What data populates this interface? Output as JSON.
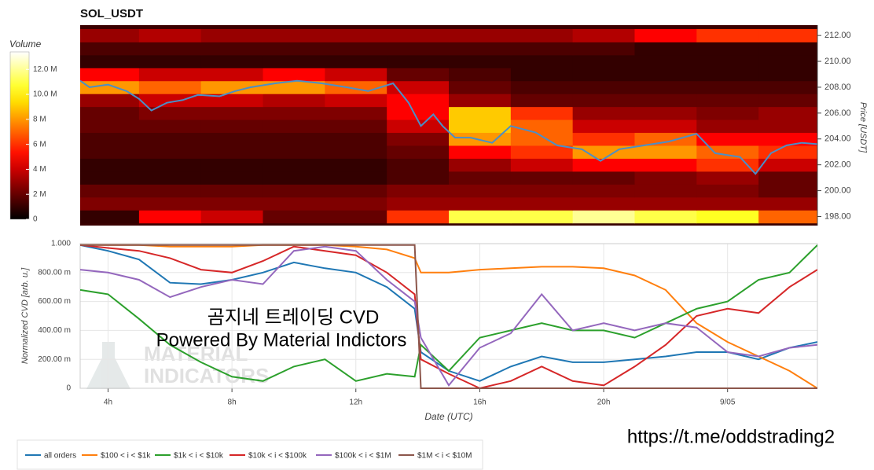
{
  "chart_data": [
    {
      "type": "heatmap",
      "title": "SOL_USDT",
      "x": [
        4,
        6,
        8,
        10,
        12,
        14,
        16,
        18,
        20,
        22,
        24,
        26
      ],
      "y": [
        198,
        199,
        200,
        201,
        202,
        203,
        204,
        205,
        206,
        207,
        208,
        209,
        210,
        211,
        212
      ],
      "z": [
        [
          1000000,
          5000000,
          4000000,
          2000000,
          2000000,
          6000000,
          11000000,
          11000000,
          12000000,
          11000000,
          10500000,
          7000000
        ],
        [
          2500000,
          2500000,
          2500000,
          2500000,
          2500000,
          3000000,
          3000000,
          3000000,
          3000000,
          3000000,
          3000000,
          3000000
        ],
        [
          2000000,
          2000000,
          2000000,
          2000000,
          2000000,
          2500000,
          2500000,
          2500000,
          2500000,
          2500000,
          2500000,
          2000000
        ],
        [
          1000000,
          1000000,
          1000000,
          1000000,
          1000000,
          1500000,
          2000000,
          2000000,
          2000000,
          2500000,
          3000000,
          2000000
        ],
        [
          1000000,
          1000000,
          1000000,
          1000000,
          1000000,
          1500000,
          3000000,
          4000000,
          5000000,
          5000000,
          6000000,
          4000000
        ],
        [
          1500000,
          1500000,
          1500000,
          1500000,
          1500000,
          2000000,
          5000000,
          6000000,
          8000000,
          8000000,
          7000000,
          6000000
        ],
        [
          1500000,
          1500000,
          1500000,
          1500000,
          1500000,
          2500000,
          8000000,
          7000000,
          6000000,
          7000000,
          5000000,
          5000000
        ],
        [
          2000000,
          2000000,
          2000000,
          2000000,
          2000000,
          4000000,
          9000000,
          7000000,
          4000000,
          4000000,
          3000000,
          3000000
        ],
        [
          2000000,
          2500000,
          2500000,
          2500000,
          2500000,
          5000000,
          9000000,
          6000000,
          3000000,
          3000000,
          2500000,
          3000000
        ],
        [
          3000000,
          4000000,
          4000000,
          3500000,
          4000000,
          5000000,
          3000000,
          2000000,
          2000000,
          2000000,
          2000000,
          2000000
        ],
        [
          8000000,
          7000000,
          8000000,
          8000000,
          7000000,
          4000000,
          2000000,
          1500000,
          1500000,
          1500000,
          1500000,
          1500000
        ],
        [
          5000000,
          4000000,
          4000000,
          5000000,
          4000000,
          2000000,
          1500000,
          1000000,
          1000000,
          1000000,
          1000000,
          1000000
        ],
        [
          1000000,
          1000000,
          1000000,
          1000000,
          1000000,
          1000000,
          1000000,
          1000000,
          1000000,
          1000000,
          1000000,
          1000000
        ],
        [
          1500000,
          1500000,
          1500000,
          1500000,
          1500000,
          1500000,
          1500000,
          1500000,
          1500000,
          1000000,
          1000000,
          1000000
        ],
        [
          3000000,
          3500000,
          3000000,
          3000000,
          3000000,
          3000000,
          3000000,
          3000000,
          3500000,
          5000000,
          6000000,
          6000000
        ]
      ],
      "colormap": "hot",
      "colorbar": {
        "label": "Volume",
        "lim": [
          0,
          13400000
        ],
        "ticks": [
          0,
          {
            "value": 2000000,
            "label": "2 M"
          },
          {
            "value": 4000000,
            "label": "4 M"
          },
          {
            "value": 6000000,
            "label": "6 M"
          },
          {
            "value": 8000000,
            "label": "8 M"
          },
          {
            "value": 10000000,
            "label": "10.0 M"
          },
          {
            "value": 12000000,
            "label": "12.0 M"
          }
        ]
      },
      "xlim": [
        3.1,
        26.9
      ],
      "ylim": [
        197.3,
        212.8
      ],
      "yticks": [
        {
          "value": 198,
          "label": "198.00"
        },
        {
          "value": 200,
          "label": "200.00"
        },
        {
          "value": 202,
          "label": "202.00"
        },
        {
          "value": 204,
          "label": "204.00"
        },
        {
          "value": 206,
          "label": "206.00"
        },
        {
          "value": 208,
          "label": "208.00"
        },
        {
          "value": 210,
          "label": "210.00"
        },
        {
          "value": 212,
          "label": "212.00"
        }
      ],
      "ylabel": "Price [USDT]",
      "line": {
        "color": "#4a8fc8",
        "x": [
          3.1,
          3.4,
          4.0,
          4.6,
          5.0,
          5.4,
          5.9,
          6.4,
          6.9,
          7.6,
          8.1,
          8.6,
          9.4,
          10.1,
          10.9,
          11.7,
          12.4,
          13.2,
          13.7,
          14.1,
          14.5,
          14.8,
          15.2,
          15.7,
          16.4,
          17.0,
          17.8,
          18.5,
          19.3,
          19.9,
          20.5,
          21.3,
          22.1,
          23.0,
          23.6,
          24.4,
          24.9,
          25.4,
          25.9,
          26.4,
          26.9
        ],
        "values": [
          208.5,
          208.0,
          208.2,
          207.7,
          207.1,
          206.2,
          206.8,
          207.0,
          207.4,
          207.3,
          207.7,
          208.0,
          208.3,
          208.5,
          208.3,
          208.0,
          207.7,
          208.3,
          206.8,
          205.0,
          205.9,
          205.0,
          204.1,
          204.1,
          203.7,
          205.0,
          204.5,
          203.5,
          203.2,
          202.3,
          203.2,
          203.5,
          203.8,
          204.4,
          202.9,
          202.6,
          201.3,
          202.9,
          203.5,
          203.7,
          203.6
        ]
      }
    },
    {
      "type": "line",
      "x": [
        3.1,
        4,
        5,
        6,
        7,
        8,
        9,
        10,
        11,
        12,
        13,
        13.9,
        14.1,
        15,
        16,
        17,
        18,
        19,
        20,
        21,
        22,
        23,
        24,
        25,
        26,
        26.9
      ],
      "series": [
        {
          "name": "all orders",
          "color": "#1f77b4",
          "values": [
            0.99,
            0.95,
            0.89,
            0.73,
            0.72,
            0.75,
            0.8,
            0.87,
            0.83,
            0.8,
            0.7,
            0.55,
            0.25,
            0.12,
            0.05,
            0.15,
            0.22,
            0.18,
            0.18,
            0.2,
            0.22,
            0.25,
            0.25,
            0.2,
            0.28,
            0.32
          ]
        },
        {
          "name": "$100 < i < $1k",
          "color": "#ff7f0e",
          "values": [
            0.99,
            0.99,
            0.99,
            0.98,
            0.98,
            0.98,
            0.99,
            0.99,
            0.99,
            0.98,
            0.96,
            0.9,
            0.8,
            0.8,
            0.82,
            0.83,
            0.84,
            0.84,
            0.83,
            0.78,
            0.68,
            0.45,
            0.32,
            0.22,
            0.12,
            0.0
          ]
        },
        {
          "name": "$1k < i < $10k",
          "color": "#2ca02c",
          "values": [
            0.68,
            0.65,
            0.48,
            0.3,
            0.18,
            0.08,
            0.05,
            0.15,
            0.2,
            0.05,
            0.1,
            0.08,
            0.3,
            0.12,
            0.35,
            0.4,
            0.45,
            0.4,
            0.4,
            0.35,
            0.45,
            0.55,
            0.6,
            0.75,
            0.8,
            0.99
          ]
        },
        {
          "name": "$10k < i < $100k",
          "color": "#d62728",
          "values": [
            0.99,
            0.97,
            0.95,
            0.9,
            0.82,
            0.8,
            0.88,
            0.98,
            0.95,
            0.92,
            0.8,
            0.65,
            0.2,
            0.1,
            0.0,
            0.05,
            0.15,
            0.05,
            0.02,
            0.15,
            0.3,
            0.5,
            0.55,
            0.52,
            0.7,
            0.82
          ]
        },
        {
          "name": "$100k < i < $1M",
          "color": "#9467bd",
          "values": [
            0.82,
            0.8,
            0.75,
            0.63,
            0.7,
            0.75,
            0.72,
            0.95,
            0.98,
            0.95,
            0.75,
            0.6,
            0.35,
            0.02,
            0.28,
            0.38,
            0.65,
            0.4,
            0.45,
            0.4,
            0.45,
            0.42,
            0.25,
            0.22,
            0.28,
            0.3
          ]
        },
        {
          "name": "$1M < i < $10M",
          "color": "#8c564b",
          "values": [
            0.99,
            0.99,
            0.99,
            0.99,
            0.99,
            0.99,
            0.99,
            0.99,
            0.99,
            0.99,
            0.99,
            0.99,
            0.0,
            0.0,
            0.0,
            0.0,
            0.0,
            0.0,
            0.0,
            0.0,
            0.0,
            0.0,
            0.0,
            0.0,
            0.0,
            0.0
          ]
        }
      ],
      "xlim": [
        3.1,
        26.9
      ],
      "xticks": [
        {
          "value": 4,
          "label": "4h"
        },
        {
          "value": 8,
          "label": "8h"
        },
        {
          "value": 12,
          "label": "12h"
        },
        {
          "value": 16,
          "label": "16h"
        },
        {
          "value": 20,
          "label": "20h"
        },
        {
          "value": 24,
          "label": "9/05"
        }
      ],
      "ylim": [
        0,
        1.0
      ],
      "yticks": [
        0,
        {
          "value": 0.2,
          "label": "200.00 m"
        },
        {
          "value": 0.4,
          "label": "400.00 m"
        },
        {
          "value": 0.6,
          "label": "600.00 m"
        },
        {
          "value": 0.8,
          "label": "800.00 m"
        },
        {
          "value": 1.0,
          "label": "1.000"
        }
      ],
      "xlabel": "Date (UTC)",
      "ylabel": "Normalized CVD [arb. u.]",
      "grid": true,
      "legend": "bottom-left",
      "annotations": [
        "곰지네 트레이딩 CVD",
        "Powered By Material Indictors",
        "https://t.me/oddstrading2"
      ],
      "watermark": [
        "MATERIAL",
        "INDICATORS"
      ]
    }
  ]
}
